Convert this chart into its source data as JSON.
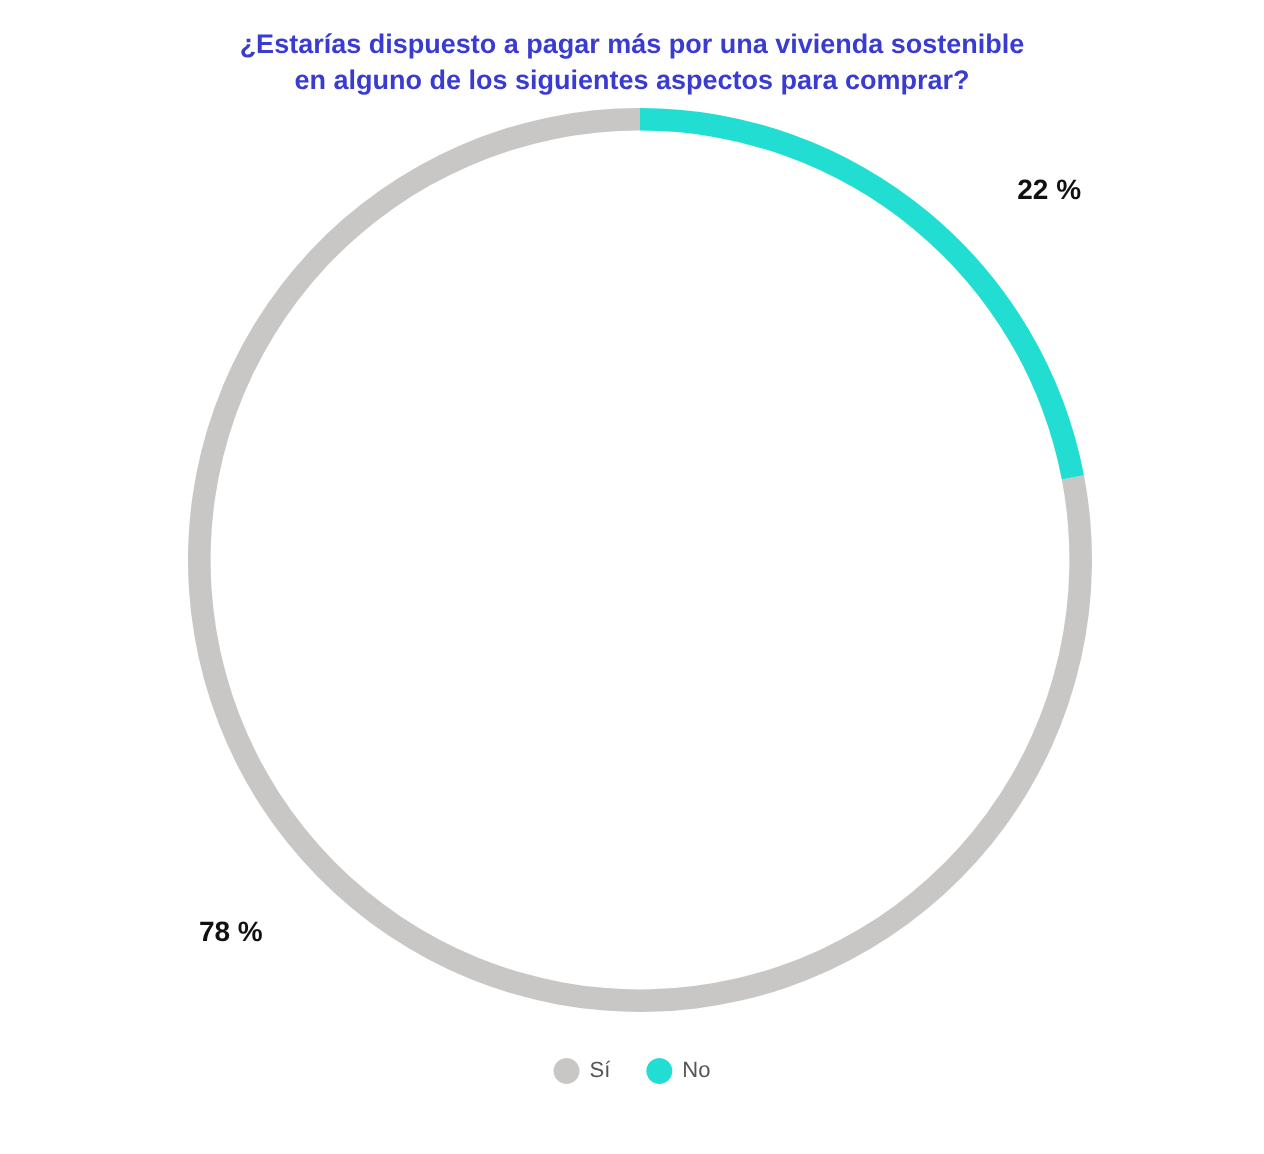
{
  "chart_data": {
    "type": "donut",
    "title": "¿Estarías dispuesto a pagar más por una vivienda sostenible\nen alguno de los siguientes aspectos para comprar?",
    "categories": [
      "Sí",
      "No"
    ],
    "values": [
      78,
      22
    ],
    "colors": [
      "#c9c7c5",
      "#22ded2"
    ],
    "value_labels": [
      "78 %",
      "22 %"
    ],
    "legend": "bottom"
  }
}
